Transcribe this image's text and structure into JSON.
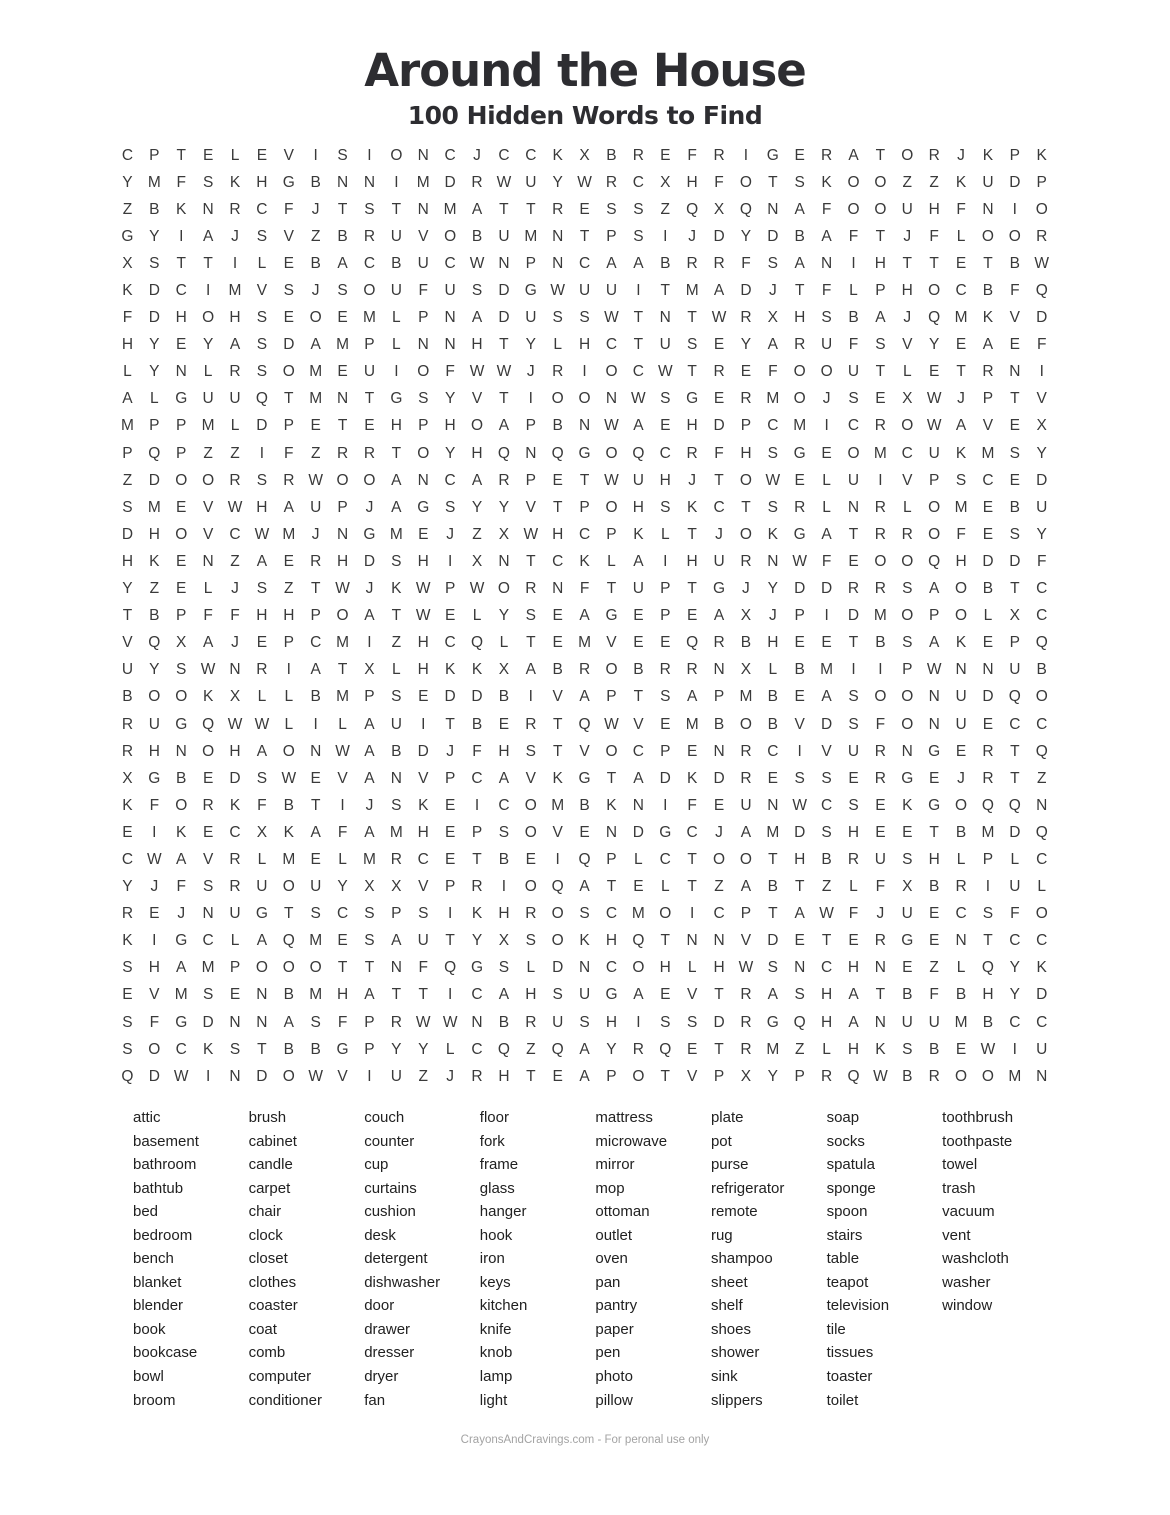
{
  "page": {
    "title": "Around the House",
    "subtitle": "100 Hidden Words to Find",
    "footer": "CrayonsAndCravings.com - For peronal use only"
  },
  "colors": {
    "background": "#ffffff",
    "title_text": "#2d2d31",
    "grid_text": "#3a3a3a",
    "list_text": "#212121",
    "footer_text": "#a3a3a3"
  },
  "grid": {
    "rows": 35,
    "cols": 35,
    "letters": [
      "CPTELEVISIONCJCCKXBREFRIGERATORJKPK",
      "YMFSKHGBNNIMDRWUYWRCXHFOTSKOOZZKUDP",
      "ZBKNRCFJTSTNMATTRESSZQXQNAFOOUHFNIO",
      "GYIAJSVZBRUVOBUMNTPSIJDYDBAFTJFLOOR",
      "XSTTILEBACBUCWNPNCAABRRFSANIHTTETBW",
      "KDCIMVSJSOUFUSDGWUUITMADJTFLPHOCBFQ",
      "FDHOHSEOEMLPNADUSSWTNTWRXHSBAJQMKVD",
      "HYEYASDAMPLNNHTYLHCTUSEYARUFSVYEAEF",
      "LYNLRSOMEUIOFWWJRIOCWTREFOOUTLETRNI",
      "ALGUUQTMNTGSYVTIOONWSGERMOJSEXWJPTV",
      "MPPMLDPETEHPHOAPBNWAEHDPCMICROWAVEX",
      "PQPZZIFZRRTOYHQNQGOQCRFHSGEOMCUKMSY",
      "ZDOORSRWOOANCARPETWUHJTOWELUIVPSCED",
      "SMEVWHAUPJAGSYYVTPOHSKCTSRLNRLOMEBU",
      "DHOVCWMJNGMEJZXWHCPKLTJOKGATRROFESY",
      "HKENZAERHDSHIXNTCKLAIHURNWFEOOQHDDF",
      "YZELJSZTWJKWPWORNFTUPTGJYDDRRSAOBTC",
      "TBPFFHHPOATWELYSEAGEPEAXJPIDMOPOLXC",
      "VQXAJEPCMIZHCQLTEMVEEQRBHEETBSAKEPQ",
      "UYSWNRIATXLHKKXABROBRRNXLBMIIPWNNUB",
      "BOOKXLLBMPSEDDBIVAPTSAPMBEASOONUDQO",
      "RUGQWWLILAUITBERTQWVEMBOBVDSFONUECC",
      "RHNOHAONWABDJFHSTVOCPENRCIVURNGERTQ",
      "XGBEDSWEVANVPCAVKGTADKDRESSERGEJRTZ",
      "KFORKFBTIJSKEICOMBKNIFEUNWCSEKGOQQN",
      "EIKECXKAFAMHEPSOVENDGCJAMDSHEETBMDQ",
      "CWAVRLMELMRCETBEIQPLCTOOTHBRUSHLPLC",
      "YJFSRUOUYXXVPRIOQATELTZABTZLFXBRIUL",
      "REJNUGTSCSPSIKHROSCMOICPTAWFJUECSFO",
      "KIGCLAQMESAUTYXSOKHQTNNVDETERGENTCC",
      "SHAMPOOOTTNFQGSLDNCOHLHWSNCHNEZLQYK",
      "EVMSENBMHATTICAHSUGAEVTRASHATBFBHYD",
      "SFGDNNASFPRWWNBRUSHISSDRGQHANUUMBCC",
      "SOCKSTBBGPYYLCQZQAYRQETRMZLHKSBEWIU",
      "QDWINDOWVIUZJRHTEAPOTVPXYPRQWBROOMN"
    ]
  },
  "word_list": {
    "columns": [
      [
        "attic",
        "basement",
        "bathroom",
        "bathtub",
        "bed",
        "bedroom",
        "bench",
        "blanket",
        "blender",
        "book",
        "bookcase",
        "bowl",
        "broom"
      ],
      [
        "brush",
        "cabinet",
        "candle",
        "carpet",
        "chair",
        "clock",
        "closet",
        "clothes",
        "coaster",
        "coat",
        "comb",
        "computer",
        "conditioner"
      ],
      [
        "couch",
        "counter",
        "cup",
        "curtains",
        "cushion",
        "desk",
        "detergent",
        "dishwasher",
        "door",
        "drawer",
        "dresser",
        "dryer",
        "fan"
      ],
      [
        "floor",
        "fork",
        "frame",
        "glass",
        "hanger",
        "hook",
        "iron",
        "keys",
        "kitchen",
        "knife",
        "knob",
        "lamp",
        "light"
      ],
      [
        "mattress",
        "microwave",
        "mirror",
        "mop",
        "ottoman",
        "outlet",
        "oven",
        "pan",
        "pantry",
        "paper",
        "pen",
        "photo",
        "pillow"
      ],
      [
        "plate",
        "pot",
        "purse",
        "refrigerator",
        "remote",
        "rug",
        "shampoo",
        "sheet",
        "shelf",
        "shoes",
        "shower",
        "sink",
        "slippers"
      ],
      [
        "soap",
        "socks",
        "spatula",
        "sponge",
        "spoon",
        "stairs",
        "table",
        "teapot",
        "television",
        "tile",
        "tissues",
        "toaster",
        "toilet"
      ],
      [
        "toothbrush",
        "toothpaste",
        "towel",
        "trash",
        "vacuum",
        "vent",
        "washcloth",
        "washer",
        "window"
      ]
    ]
  }
}
